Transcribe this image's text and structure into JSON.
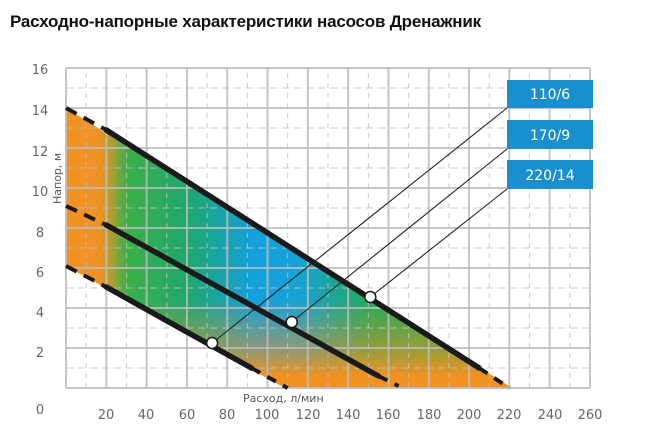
{
  "title": "Расходно-напорные характеристики насосов Дренажник",
  "chart_data": {
    "type": "line",
    "title": "Расходно-напорные характеристики насосов Дренажник",
    "xlabel": "Расход, л/мин",
    "ylabel": "Напор, м",
    "xlim": [
      0,
      260
    ],
    "ylim": [
      0,
      16
    ],
    "x_ticks": [
      0,
      20,
      40,
      60,
      80,
      100,
      120,
      140,
      160,
      180,
      200,
      220,
      240,
      260
    ],
    "x_tick_labels": [
      "20",
      "40",
      "60",
      "80",
      "100",
      "120",
      "140",
      "160",
      "180",
      "200",
      "220",
      "240",
      "260"
    ],
    "y_ticks": [
      0,
      2,
      4,
      6,
      8,
      10,
      12,
      14,
      16
    ],
    "y_tick_labels": [
      "0",
      "2",
      "4",
      "6",
      "8",
      "10",
      "12",
      "14",
      "16"
    ],
    "grid": true,
    "legend_position": "upper right (callout labels)",
    "series": [
      {
        "name": "110/6",
        "x": [
          0,
          20,
          92,
          110
        ],
        "y": [
          6.1,
          5.05,
          1.0,
          0
        ],
        "marker": {
          "x": 72.5,
          "y": 2.25
        }
      },
      {
        "name": "170/9",
        "x": [
          0,
          20,
          155,
          165
        ],
        "y": [
          9.1,
          8.15,
          0.6,
          0.1
        ],
        "marker": {
          "x": 112,
          "y": 3.3
        }
      },
      {
        "name": "220/14",
        "x": [
          0,
          20,
          205,
          220
        ],
        "y": [
          14.0,
          12.9,
          1.0,
          0
        ],
        "marker": {
          "x": 151,
          "y": 4.55
        }
      }
    ],
    "colors": {
      "fill_orange": "#f29222",
      "fill_green": "#22ad4e",
      "fill_blue": "#14a0dc",
      "tag": "#1a8fd0",
      "curve": "#1a1a1a",
      "grid": "#c2c2c2"
    }
  },
  "axes": {
    "xlabel": "Расход, л/мин",
    "ylabel": "Напор, м",
    "y_labels": [
      "0",
      "2",
      "4",
      "6",
      "8",
      "10",
      "12",
      "14",
      "16"
    ],
    "x_labels": [
      "20",
      "40",
      "60",
      "80",
      "100",
      "120",
      "140",
      "160",
      "180",
      "200",
      "220",
      "240",
      "260"
    ]
  },
  "tags": [
    {
      "label": "110/6"
    },
    {
      "label": "170/9"
    },
    {
      "label": "220/14"
    }
  ]
}
